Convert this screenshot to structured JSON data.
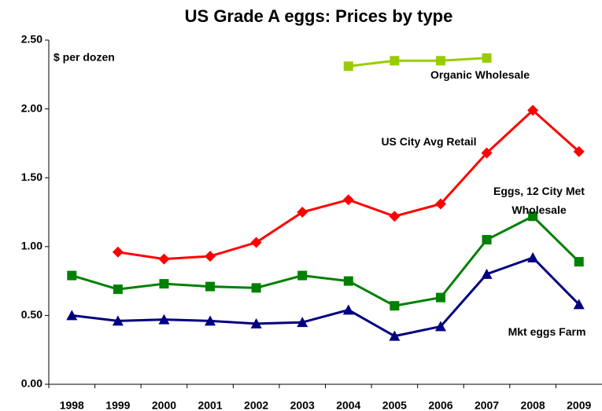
{
  "chart_data": {
    "type": "line",
    "title": "US Grade A eggs: Prices by type",
    "y_label": "$ per dozen",
    "categories": [
      "1998",
      "1999",
      "2000",
      "2001",
      "2002",
      "2003",
      "2004",
      "2005",
      "2006",
      "2007",
      "2008",
      "2009"
    ],
    "series": [
      {
        "name": "Organic Wholesale",
        "color": "#99cc00",
        "marker": "square",
        "values": [
          null,
          null,
          null,
          null,
          null,
          null,
          2.31,
          2.35,
          2.35,
          2.37,
          null,
          null
        ]
      },
      {
        "name": "US City Avg Retail",
        "color": "#ff0000",
        "marker": "diamond",
        "values": [
          null,
          0.96,
          0.91,
          0.93,
          1.03,
          1.25,
          1.34,
          1.22,
          1.31,
          1.68,
          1.99,
          1.69
        ]
      },
      {
        "name": "Eggs, 12 City Met Wholesale",
        "color": "#008000",
        "marker": "square",
        "values": [
          0.79,
          0.69,
          0.73,
          0.71,
          0.7,
          0.79,
          0.75,
          0.57,
          0.63,
          1.05,
          1.22,
          0.89
        ]
      },
      {
        "name": "Mkt eggs Farm",
        "color": "#000080",
        "marker": "triangle",
        "values": [
          0.5,
          0.46,
          0.47,
          0.46,
          0.44,
          0.45,
          0.54,
          0.35,
          0.42,
          0.8,
          0.92,
          0.58
        ]
      }
    ],
    "ylim": [
      0,
      2.5
    ],
    "yticks": [
      {
        "value": 0,
        "label": "0.00"
      },
      {
        "value": 0.5,
        "label": "0.50"
      },
      {
        "value": 1,
        "label": "1.00"
      },
      {
        "value": 1.5,
        "label": "1.50"
      },
      {
        "value": 2,
        "label": "2.00"
      },
      {
        "value": 2.5,
        "label": "2.50"
      }
    ],
    "grid": false
  }
}
